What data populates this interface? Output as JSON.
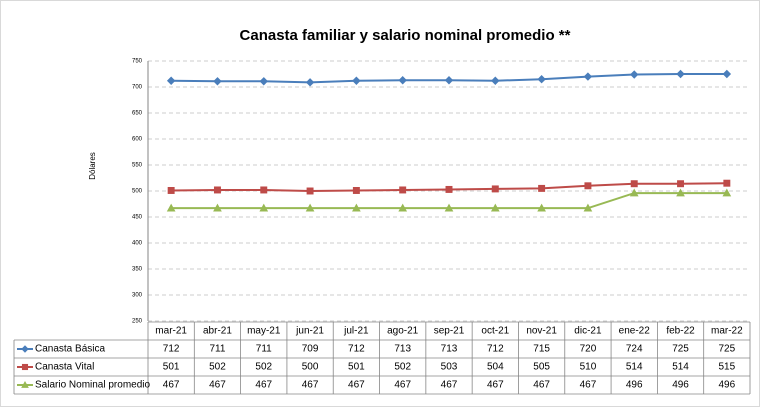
{
  "chart_data": {
    "type": "line",
    "title": "Canasta familiar y salario nominal promedio **",
    "y_label": "Dólares",
    "categories": [
      "mar-21",
      "abr-21",
      "may-21",
      "jun-21",
      "jul-21",
      "ago-21",
      "sep-21",
      "oct-21",
      "nov-21",
      "dic-21",
      "ene-22",
      "feb-22",
      "mar-22"
    ],
    "series": [
      {
        "name": "Canasta Básica",
        "color": "#4a7ebb",
        "marker": "diamond",
        "values": [
          712,
          711,
          711,
          709,
          712,
          713,
          713,
          712,
          715,
          720,
          724,
          725,
          725
        ]
      },
      {
        "name": "Canasta Vital",
        "color": "#be4b48",
        "marker": "square",
        "values": [
          501,
          502,
          502,
          500,
          501,
          502,
          503,
          504,
          505,
          510,
          514,
          514,
          515
        ]
      },
      {
        "name": "Salario Nominal promedio",
        "color": "#98b954",
        "marker": "triangle",
        "values": [
          467,
          467,
          467,
          467,
          467,
          467,
          467,
          467,
          467,
          467,
          496,
          496,
          496
        ]
      }
    ],
    "ylim": [
      250,
      750
    ],
    "yticks": [
      250,
      300,
      350,
      400,
      450,
      500,
      550,
      600,
      650,
      700,
      750
    ],
    "grid": true,
    "data_table": true
  }
}
